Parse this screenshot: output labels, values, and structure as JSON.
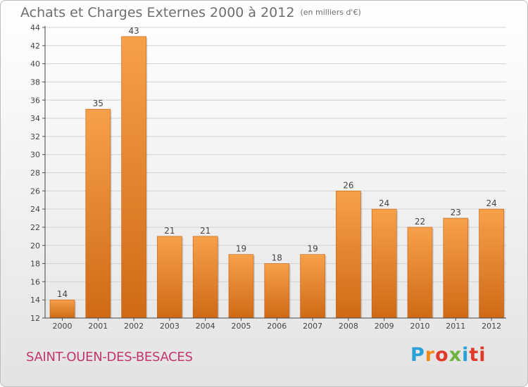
{
  "header": {
    "title": "Achats et Charges Externes 2000 à 2012",
    "subtitle": "(en milliers d'€)"
  },
  "footer": {
    "town": "SAINT-OUEN-DES-BESACES",
    "logo_text": "Proxiti",
    "logo_letters": [
      "P",
      "r",
      "o",
      "x",
      "i",
      "ti"
    ]
  },
  "colors": {
    "bar_light": "#f7a04a",
    "bar_dark": "#cf6a16",
    "title": "#6e6e6e",
    "town": "#c3356f"
  },
  "chart_data": {
    "type": "bar",
    "title": "Achats et Charges Externes 2000 à 2012",
    "subtitle": "(en milliers d'€)",
    "categories": [
      "2000",
      "2001",
      "2002",
      "2003",
      "2004",
      "2005",
      "2006",
      "2007",
      "2008",
      "2009",
      "2010",
      "2011",
      "2012"
    ],
    "values": [
      14,
      35,
      43,
      21,
      21,
      19,
      18,
      19,
      26,
      24,
      22,
      23,
      24
    ],
    "xlabel": "",
    "ylabel": "",
    "ylim": [
      12,
      44
    ],
    "yticks": [
      12,
      14,
      16,
      18,
      20,
      22,
      24,
      26,
      28,
      30,
      32,
      34,
      36,
      38,
      40,
      42,
      44
    ],
    "grid": true,
    "data_labels": true
  }
}
